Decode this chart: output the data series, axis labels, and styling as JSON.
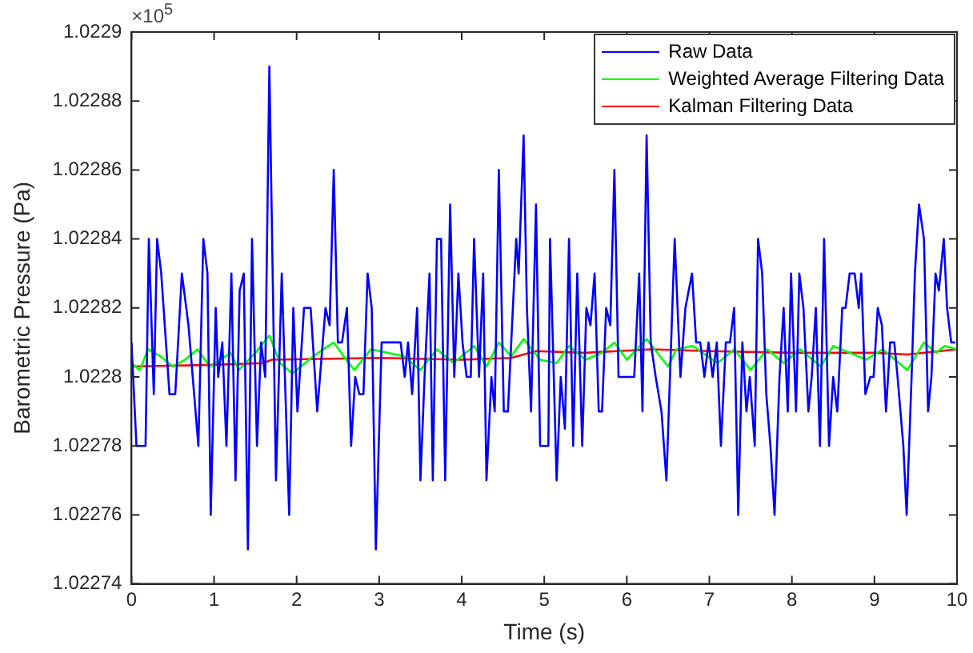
{
  "chart_data": {
    "type": "line",
    "xlabel": "Time (s)",
    "ylabel": "Barometric Pressure (Pa)",
    "annotations": [
      "×10$^{5}$"
    ],
    "xlim": [
      0,
      10
    ],
    "xticks": [
      0,
      1,
      2,
      3,
      4,
      5,
      6,
      7,
      8,
      9,
      10
    ],
    "ylim": [
      1.02274,
      1.0229
    ],
    "yticks": [
      1.02274,
      1.02276,
      1.02278,
      1.0228,
      1.02282,
      1.02284,
      1.02286,
      1.02288,
      1.0229
    ],
    "grid": false,
    "legend": "top right",
    "marker": "none",
    "line_style": "solid",
    "series": [
      {
        "name": "Raw Data",
        "color": "#0000ff",
        "x": [
          0,
          0.06,
          0.17,
          0.21,
          0.27,
          0.31,
          0.36,
          0.46,
          0.53,
          0.61,
          0.69,
          0.81,
          0.87,
          0.92,
          0.96,
          1.02,
          1.05,
          1.1,
          1.15,
          1.21,
          1.26,
          1.31,
          1.36,
          1.41,
          1.46,
          1.52,
          1.57,
          1.62,
          1.67,
          1.75,
          1.82,
          1.91,
          1.96,
          2.01,
          2.09,
          2.17,
          2.25,
          2.35,
          2.4,
          2.45,
          2.5,
          2.55,
          2.61,
          2.66,
          2.71,
          2.76,
          2.81,
          2.86,
          2.91,
          2.96,
          3.03,
          3.11,
          3.18,
          3.26,
          3.31,
          3.35,
          3.4,
          3.46,
          3.5,
          3.55,
          3.61,
          3.65,
          3.7,
          3.75,
          3.8,
          3.86,
          3.91,
          3.96,
          4.01,
          4.06,
          4.11,
          4.15,
          4.21,
          4.26,
          4.3,
          4.36,
          4.4,
          4.45,
          4.51,
          4.56,
          4.66,
          4.69,
          4.75,
          4.79,
          4.84,
          4.9,
          4.95,
          5.05,
          5.07,
          5.15,
          5.2,
          5.25,
          5.3,
          5.35,
          5.4,
          5.46,
          5.51,
          5.56,
          5.61,
          5.66,
          5.7,
          5.75,
          5.8,
          5.85,
          5.9,
          6,
          6.09,
          6.15,
          6.19,
          6.24,
          6.29,
          6.35,
          6.42,
          6.48,
          6.58,
          6.65,
          6.71,
          6.79,
          6.84,
          6.89,
          6.94,
          6.99,
          7.04,
          7.09,
          7.14,
          7.2,
          7.25,
          7.3,
          7.35,
          7.4,
          7.45,
          7.49,
          7.55,
          7.59,
          7.64,
          7.69,
          7.74,
          7.79,
          7.85,
          7.9,
          7.95,
          7.99,
          8.05,
          8.09,
          8.14,
          8.2,
          8.24,
          8.29,
          8.34,
          8.39,
          8.45,
          8.5,
          8.55,
          8.61,
          8.65,
          8.7,
          8.76,
          8.81,
          8.84,
          8.89,
          8.95,
          8.99,
          9.04,
          9.09,
          9.14,
          9.19,
          9.24,
          9.28,
          9.35,
          9.39,
          9.45,
          9.49,
          9.54,
          9.6,
          9.65,
          9.69,
          9.74,
          9.78,
          9.84,
          9.88,
          9.93,
          9.98
        ],
        "values": [
          1.02281,
          1.02278,
          1.02278,
          1.02284,
          1.022795,
          1.02284,
          1.02283,
          1.022795,
          1.022795,
          1.02283,
          1.022815,
          1.02278,
          1.02284,
          1.02283,
          1.02276,
          1.02282,
          1.0228,
          1.02281,
          1.02278,
          1.02283,
          1.02277,
          1.022825,
          1.02283,
          1.02275,
          1.02284,
          1.02278,
          1.02281,
          1.0228,
          1.02289,
          1.02277,
          1.02283,
          1.02276,
          1.02282,
          1.02279,
          1.02282,
          1.02282,
          1.02279,
          1.02282,
          1.022815,
          1.02286,
          1.02281,
          1.02281,
          1.02282,
          1.02278,
          1.0228,
          1.022795,
          1.022795,
          1.02283,
          1.02282,
          1.02275,
          1.02281,
          1.02281,
          1.02281,
          1.02281,
          1.0228,
          1.02281,
          1.022795,
          1.02282,
          1.02277,
          1.0228,
          1.02283,
          1.02277,
          1.02284,
          1.02284,
          1.02277,
          1.02285,
          1.0228,
          1.02283,
          1.02281,
          1.0228,
          1.0228,
          1.02284,
          1.0228,
          1.02283,
          1.02277,
          1.0228,
          1.02279,
          1.02286,
          1.02279,
          1.02279,
          1.02284,
          1.02283,
          1.02287,
          1.02282,
          1.02279,
          1.02285,
          1.02278,
          1.02278,
          1.02284,
          1.02277,
          1.0228,
          1.022785,
          1.02284,
          1.02278,
          1.02283,
          1.02278,
          1.02282,
          1.022815,
          1.02283,
          1.02279,
          1.02279,
          1.02282,
          1.022815,
          1.02286,
          1.0228,
          1.0228,
          1.0228,
          1.02283,
          1.02279,
          1.02287,
          1.02281,
          1.0228,
          1.02279,
          1.02277,
          1.02284,
          1.0228,
          1.02282,
          1.02283,
          1.02281,
          1.02281,
          1.0228,
          1.02281,
          1.0228,
          1.02281,
          1.02278,
          1.02281,
          1.02281,
          1.02282,
          1.02276,
          1.02281,
          1.02279,
          1.0228,
          1.02278,
          1.02284,
          1.02283,
          1.022795,
          1.02278,
          1.02276,
          1.0228,
          1.02282,
          1.02279,
          1.02283,
          1.02279,
          1.02283,
          1.02282,
          1.02279,
          1.0228,
          1.02282,
          1.02278,
          1.02284,
          1.02278,
          1.0228,
          1.02279,
          1.02282,
          1.02282,
          1.02283,
          1.02283,
          1.02282,
          1.02283,
          1.022795,
          1.0228,
          1.0228,
          1.02282,
          1.022815,
          1.02279,
          1.02281,
          1.02281,
          1.0228,
          1.02278,
          1.02276,
          1.0228,
          1.02283,
          1.02285,
          1.02284,
          1.02279,
          1.0228,
          1.02283,
          1.022825,
          1.02284,
          1.02282,
          1.02281,
          1.02281
        ]
      },
      {
        "name": "Weighted Average Filtering Data",
        "color": "#00ff00",
        "x": [
          0,
          0.1,
          0.2,
          0.35,
          0.5,
          0.65,
          0.8,
          0.95,
          1.2,
          1.3,
          1.5,
          1.67,
          1.8,
          1.95,
          2.2,
          2.45,
          2.6,
          2.7,
          2.9,
          3.1,
          3.3,
          3.5,
          3.7,
          3.9,
          4.15,
          4.3,
          4.45,
          4.6,
          4.75,
          4.95,
          5.15,
          5.3,
          5.5,
          5.7,
          5.85,
          6,
          6.24,
          6.5,
          6.6,
          6.8,
          7.1,
          7.3,
          7.5,
          7.7,
          7.9,
          8.1,
          8.35,
          8.5,
          8.7,
          8.9,
          9.1,
          9.4,
          9.6,
          9.75,
          9.85,
          10
        ],
        "values": [
          1.022804,
          1.022802,
          1.022808,
          1.022806,
          1.022803,
          1.022805,
          1.022808,
          1.022803,
          1.022807,
          1.022802,
          1.022807,
          1.022812,
          1.022804,
          1.022801,
          1.022806,
          1.02281,
          1.022805,
          1.022802,
          1.022808,
          1.022807,
          1.022806,
          1.022802,
          1.022808,
          1.022804,
          1.022809,
          1.022803,
          1.02281,
          1.022806,
          1.022811,
          1.022805,
          1.022804,
          1.022809,
          1.022805,
          1.022807,
          1.02281,
          1.022805,
          1.022811,
          1.022803,
          1.022808,
          1.022809,
          1.022804,
          1.022808,
          1.022802,
          1.022808,
          1.022804,
          1.022808,
          1.022803,
          1.022809,
          1.022807,
          1.022805,
          1.022808,
          1.022802,
          1.02281,
          1.022807,
          1.022809,
          1.022808
        ]
      },
      {
        "name": "Kalman Filtering Data",
        "color": "#ff0000",
        "x": [
          0,
          1,
          1.6,
          1.7,
          3,
          4,
          4.6,
          4.9,
          5.5,
          6.3,
          7,
          8,
          9,
          9.4,
          10
        ],
        "values": [
          1.022803,
          1.0228035,
          1.022804,
          1.022805,
          1.0228055,
          1.022805,
          1.0228055,
          1.0228075,
          1.022807,
          1.022808,
          1.0228075,
          1.022807,
          1.022807,
          1.0228065,
          1.022808
        ]
      }
    ]
  }
}
